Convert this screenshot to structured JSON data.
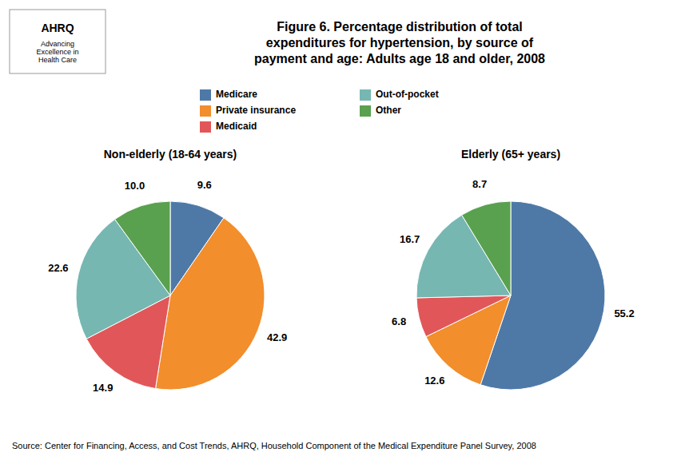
{
  "chart_data": {
    "type": "pie",
    "title": "Figure 6. Percentage distribution of total\nexpenditures for hypertension, by source of\npayment and age: Adults age 18 and older, 2008",
    "categories": [
      "Medicare",
      "Private insurance",
      "Medicaid",
      "Out-of-pocket",
      "Other"
    ],
    "series": [
      {
        "name": "Non-elderly (18-64 years)",
        "values": [
          9.6,
          42.9,
          14.9,
          22.6,
          10.0
        ],
        "value_labels": [
          "9.6",
          "42.9",
          "14.9",
          "22.6",
          "10.0"
        ]
      },
      {
        "name": "Elderly (65+ years)",
        "values": [
          55.2,
          12.6,
          6.8,
          16.7,
          8.7
        ],
        "value_labels": [
          "55.2",
          "12.6",
          "6.8",
          "16.7",
          "8.7"
        ]
      }
    ],
    "data_labels": true,
    "legend": "top",
    "annotations": [
      "AHRQ",
      "Advancing\nExcellence in\nHealth Care",
      "Source: Center for Financing, Access, and Cost Trends, AHRQ, Household Component of the Medical Expenditure Panel Survey, 2008"
    ]
  }
}
